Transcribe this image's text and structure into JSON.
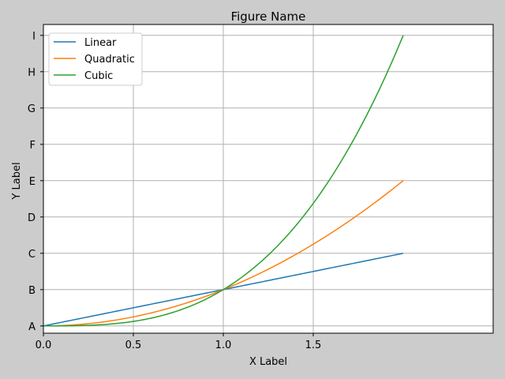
{
  "chart_data": {
    "type": "line",
    "title": "Figure Name",
    "xlabel": "X Label",
    "ylabel": "Y Label",
    "xlim": [
      0,
      2.5
    ],
    "ylim": [
      -0.2,
      8.3
    ],
    "x_ticks": [
      {
        "value": 0,
        "label": "0.0"
      },
      {
        "value": 0.5,
        "label": "0.5"
      },
      {
        "value": 1.0,
        "label": "1.0"
      },
      {
        "value": 1.5,
        "label": "1.5"
      }
    ],
    "y_ticks": [
      {
        "value": 0,
        "label": "A"
      },
      {
        "value": 1,
        "label": "B"
      },
      {
        "value": 2,
        "label": "C"
      },
      {
        "value": 3,
        "label": "D"
      },
      {
        "value": 4,
        "label": "E"
      },
      {
        "value": 5,
        "label": "F"
      },
      {
        "value": 6,
        "label": "G"
      },
      {
        "value": 7,
        "label": "H"
      },
      {
        "value": 8,
        "label": "I"
      }
    ],
    "grid": true,
    "legend_position": "upper-left",
    "x_range": [
      0,
      2
    ],
    "series": [
      {
        "name": "Linear",
        "color": "#1f77b4",
        "function": "x",
        "x": [
          0,
          0.5,
          1,
          1.5,
          2
        ],
        "y": [
          0,
          0.5,
          1,
          1.5,
          2
        ]
      },
      {
        "name": "Quadratic",
        "color": "#ff7f0e",
        "function": "x^2",
        "x": [
          0,
          0.5,
          1,
          1.5,
          2
        ],
        "y": [
          0,
          0.25,
          1,
          2.25,
          4
        ]
      },
      {
        "name": "Cubic",
        "color": "#2ca02c",
        "function": "x^3",
        "x": [
          0,
          0.5,
          1,
          1.5,
          2
        ],
        "y": [
          0,
          0.125,
          1,
          3.375,
          8
        ]
      }
    ]
  }
}
